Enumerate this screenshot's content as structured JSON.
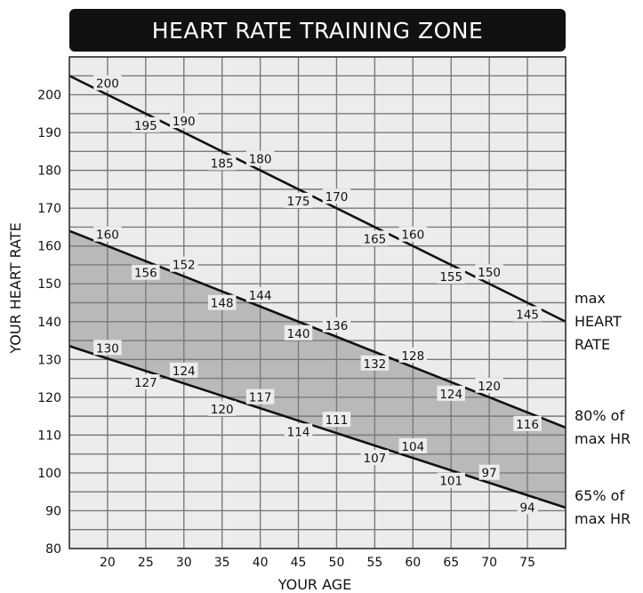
{
  "chart_data": {
    "type": "line",
    "title": "HEART RATE TRAINING ZONE",
    "xlabel": "YOUR AGE",
    "ylabel": "YOUR HEART RATE",
    "xlim": [
      15,
      80
    ],
    "ylim": [
      80,
      210
    ],
    "x_ticks": [
      20,
      25,
      30,
      35,
      40,
      45,
      50,
      55,
      60,
      65,
      70,
      75
    ],
    "y_ticks": [
      80,
      90,
      100,
      110,
      120,
      130,
      140,
      150,
      160,
      170,
      180,
      190,
      200
    ],
    "grid": true,
    "shaded_band": {
      "between": [
        "80% of max HR",
        "65% of max HR"
      ],
      "color": "#b9b9b9"
    },
    "series": [
      {
        "name": "max HEART RATE",
        "label_lines": [
          "max",
          "HEART",
          "RATE"
        ],
        "x": [
          20,
          25,
          30,
          35,
          40,
          45,
          50,
          55,
          60,
          65,
          70,
          75
        ],
        "values": [
          200,
          195,
          190,
          185,
          180,
          175,
          170,
          165,
          160,
          155,
          150,
          145
        ],
        "labels": [
          "200",
          "195",
          "190",
          "185",
          "180",
          "175",
          "170",
          "165",
          "160",
          "155",
          "150",
          "145"
        ]
      },
      {
        "name": "80% of max HR",
        "label_lines": [
          "80% of",
          "max HR"
        ],
        "x": [
          20,
          25,
          30,
          35,
          40,
          45,
          50,
          55,
          60,
          65,
          70,
          75
        ],
        "values": [
          160,
          156,
          152,
          148,
          144,
          140,
          136,
          132,
          128,
          124,
          120,
          116
        ],
        "labels": [
          "160",
          "156",
          "152",
          "148",
          "144",
          "140",
          "136",
          "132",
          "128",
          "124",
          "120",
          "116"
        ]
      },
      {
        "name": "65% of max HR",
        "label_lines": [
          "65% of",
          "max HR"
        ],
        "x": [
          20,
          25,
          30,
          35,
          40,
          45,
          50,
          55,
          60,
          65,
          70,
          75
        ],
        "values": [
          130,
          127,
          124,
          120,
          117,
          114,
          111,
          107,
          104,
          101,
          97,
          94
        ],
        "labels": [
          "130",
          "127",
          "124",
          "120",
          "117",
          "114",
          "111",
          "107",
          "104",
          "101",
          "97",
          "94"
        ]
      }
    ]
  },
  "colors": {
    "title_bar": "#111111",
    "plot_background": "#ececec",
    "grid": "#7a7a7a",
    "lines": "#111111",
    "band": "#b9b9b9"
  }
}
